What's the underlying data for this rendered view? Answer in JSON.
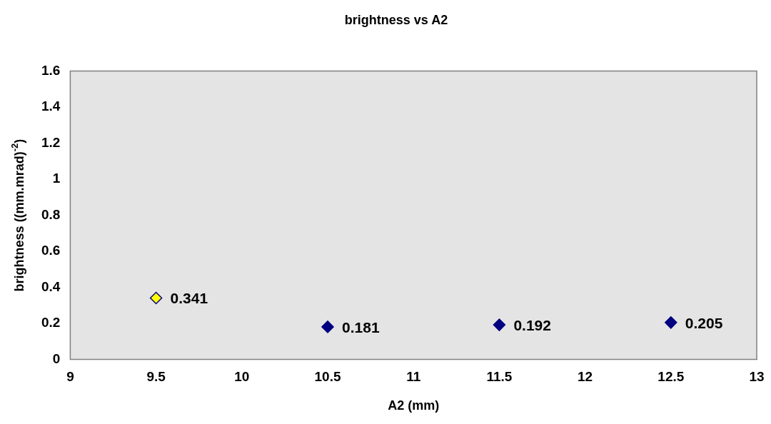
{
  "chart_data": {
    "type": "scatter",
    "title": "brightness vs A2",
    "xlabel": "A2 (mm)",
    "ylabel": "brightness ((mm.mrad)$^{-2}$)",
    "x": [
      9.5,
      10.5,
      11.5,
      12.5
    ],
    "values": [
      0.341,
      0.181,
      0.192,
      0.205
    ],
    "colors": [
      "#ffff00",
      "#000080",
      "#000080",
      "#000080"
    ],
    "data_labels": true,
    "marker": "diamond",
    "grid": false,
    "legend": false,
    "xlim": [
      9,
      13
    ],
    "xticks": [
      9,
      9.5,
      10,
      10.5,
      11,
      11.5,
      12,
      12.5,
      13
    ],
    "ylim": [
      0,
      1.6
    ],
    "yticks": [
      0,
      0.2,
      0.4,
      0.6,
      0.8,
      1,
      1.2,
      1.4,
      1.6
    ]
  }
}
